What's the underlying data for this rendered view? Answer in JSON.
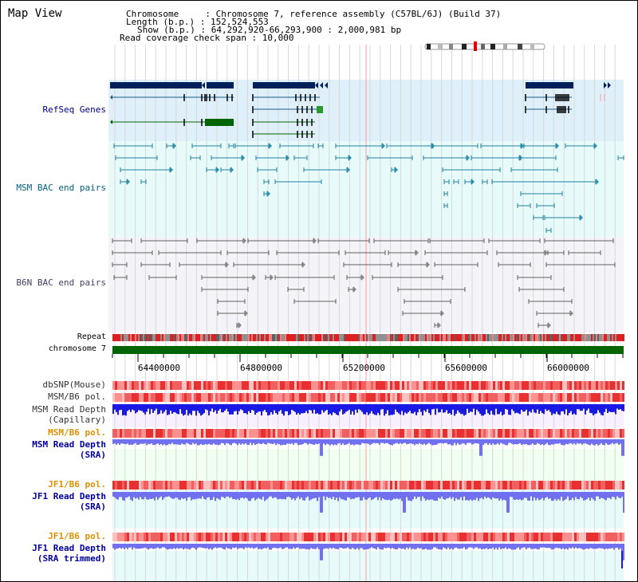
{
  "header": {
    "title": "Map View",
    "chromosome_label": "Chromosome     : Chromosome 7, reference assembly (C57BL/6J) (Build 37)",
    "length_label": "Length (b.p.) : 152,524,553",
    "show_label": "Show (b.p.) : 64,292,920-66,293,900 : 2,000,981 bp",
    "coverage_label": "Read coverage check span : 10,000"
  },
  "tracks": {
    "refseq": "RefSeq Genes",
    "msm_bac": "MSM BAC end pairs",
    "b6n_bac": "B6N BAC end pairs",
    "repeat": "Repeat",
    "chromosome": "chromosome 7",
    "dbsnp": "dbSNP(Mouse)",
    "msm_b6_pol": "MSM/B6 pol.",
    "msm_depth_cap_1": "MSM Read Depth",
    "msm_depth_cap_2": "(Capillary)",
    "msm_b6_pol2": "MSM/B6 pol.",
    "msm_depth_sra_1": "MSM Read Depth",
    "msm_depth_sra_2": "(SRA)",
    "jf1_pol": "JF1/B6 pol.",
    "jf1_depth_sra_1": "JF1 Read Depth",
    "jf1_depth_sra_2": "(SRA)",
    "jf1_pol2": "JF1/B6 pol.",
    "jf1_trim_1": "JF1 Read Depth",
    "jf1_trim_2": "(SRA trimmed)"
  },
  "axis": {
    "ticks": [
      "64400000",
      "64800000",
      "65200000",
      "65600000",
      "66000000"
    ]
  },
  "colors": {
    "refseq_bg": "#dff0fb",
    "msm_bac_bg": "#e8fbfb",
    "b6n_bac_bg": "#f4f4f8",
    "chrom_green": "#006400",
    "gene_navy": "#00205c",
    "depth_blue": "#1a1ae6",
    "depth_light": "#7070f0",
    "pol_red": "#f05050"
  }
}
